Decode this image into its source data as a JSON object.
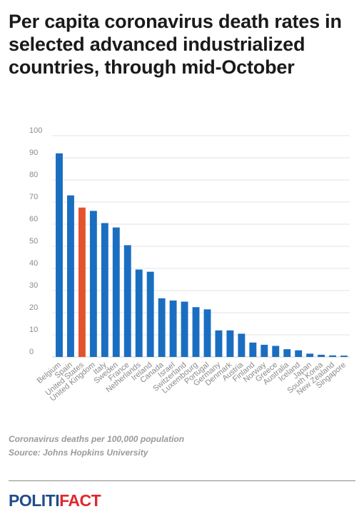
{
  "title": "Per capita coronavirus death rates in selected advanced industrialized countries, through mid-October",
  "notes": {
    "caption": "Coronavirus deaths per 100,000 population",
    "source": "Source: Johns Hopkins University"
  },
  "logo": {
    "part1": "POLITI",
    "part2": "FACT"
  },
  "colors": {
    "bar": "#1a6ec1",
    "highlight": "#e2532e",
    "grid": "#e3e3e3"
  },
  "chart_data": {
    "type": "bar",
    "title": "Per capita coronavirus death rates in selected advanced industrialized countries, through mid-October",
    "xlabel": "",
    "ylabel": "",
    "ylim": [
      0,
      100
    ],
    "yticks": [
      0,
      10,
      20,
      30,
      40,
      50,
      60,
      70,
      80,
      90,
      100
    ],
    "grid": true,
    "legend": "none",
    "highlight_category": "United States",
    "categories": [
      "Belgium",
      "Spain",
      "United States",
      "United Kingdom",
      "Italy",
      "Sweden",
      "France",
      "Netherlands",
      "Ireland",
      "Canada",
      "Israel",
      "Switzerland",
      "Luxembourg",
      "Portugal",
      "Germany",
      "Denmark",
      "Austria",
      "Finland",
      "Norway",
      "Greece",
      "Australia",
      "Iceland",
      "Japan",
      "South Korea",
      "New Zealand",
      "Singapore"
    ],
    "values": [
      92,
      73,
      67.5,
      66,
      60.5,
      58.5,
      50.5,
      39.5,
      38.5,
      26.5,
      25.5,
      25,
      22.5,
      21.5,
      12,
      12,
      10.5,
      6.5,
      5.5,
      5,
      3.5,
      3,
      1.5,
      1,
      0.7,
      0.6
    ]
  }
}
